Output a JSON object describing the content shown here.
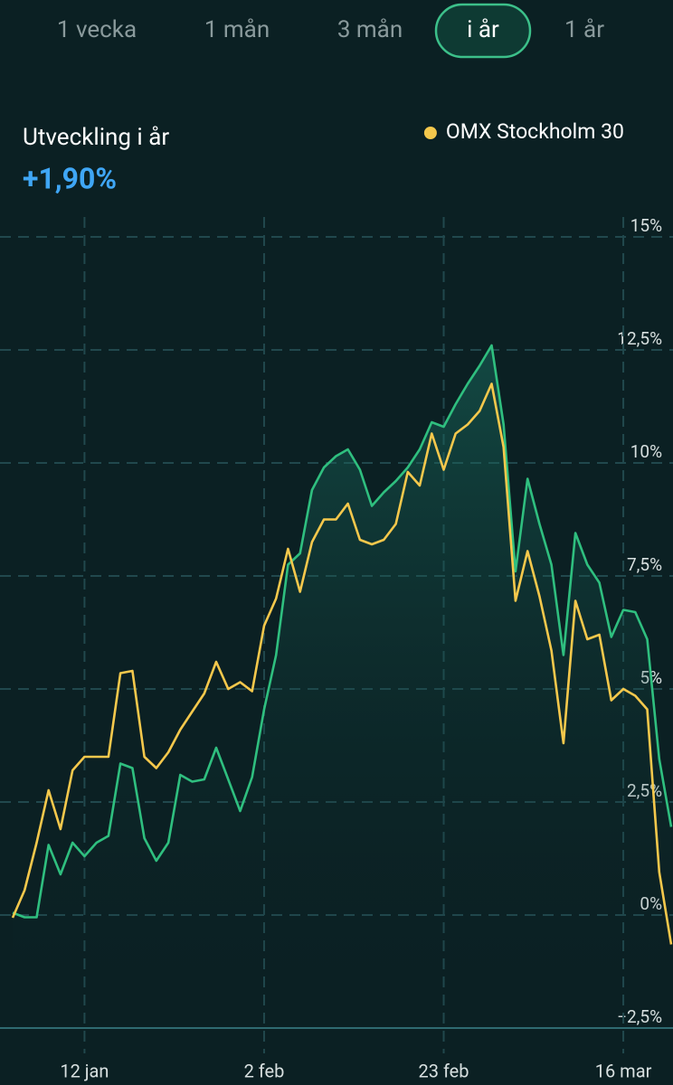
{
  "tabs": {
    "items": [
      "1 vecka",
      "1 mån",
      "3 mån",
      "i år",
      "1 år"
    ],
    "selected": 3
  },
  "header": {
    "title": "Utveckling i år",
    "change": "+1,90%"
  },
  "chart_data": {
    "type": "line",
    "categories": [
      null,
      null,
      null,
      null,
      null,
      null,
      "12 jan",
      null,
      null,
      null,
      null,
      null,
      null,
      null,
      null,
      null,
      null,
      null,
      null,
      null,
      null,
      "2 feb",
      null,
      null,
      null,
      null,
      null,
      null,
      null,
      null,
      null,
      null,
      null,
      null,
      null,
      null,
      "23 feb",
      null,
      null,
      null,
      null,
      null,
      null,
      null,
      null,
      null,
      null,
      null,
      null,
      null,
      null,
      "16 mar",
      null,
      null,
      null,
      null
    ],
    "series": [
      {
        "color": "#2fbf7f",
        "fill": true,
        "values": [
          0.05,
          -0.05,
          -0.05,
          1.55,
          0.9,
          1.6,
          1.3,
          1.6,
          1.75,
          3.35,
          3.25,
          1.7,
          1.2,
          1.6,
          3.1,
          2.95,
          3.0,
          3.7,
          3.0,
          2.3,
          3.05,
          4.55,
          5.75,
          7.75,
          8.0,
          9.4,
          9.9,
          10.15,
          10.3,
          9.85,
          9.05,
          9.35,
          9.6,
          9.9,
          10.3,
          10.9,
          10.8,
          11.3,
          11.75,
          12.15,
          12.6,
          10.85,
          7.6,
          9.65,
          8.65,
          7.75,
          5.75,
          8.45,
          7.75,
          7.35,
          6.15,
          6.75,
          6.7,
          6.1,
          3.45,
          1.95
        ]
      },
      {
        "name": "OMX Stockholm 30",
        "color": "#f5c84c",
        "fill": false,
        "values": [
          -0.06,
          0.55,
          1.6,
          2.76,
          1.9,
          3.2,
          3.5,
          3.5,
          3.5,
          5.35,
          5.4,
          3.5,
          3.25,
          3.6,
          4.1,
          4.5,
          4.9,
          5.6,
          5.0,
          5.15,
          4.95,
          6.4,
          7.0,
          8.1,
          7.15,
          8.25,
          8.75,
          8.75,
          9.1,
          8.3,
          8.2,
          8.3,
          8.65,
          9.8,
          9.5,
          10.65,
          9.85,
          10.65,
          10.85,
          11.15,
          11.75,
          10.35,
          6.95,
          8.05,
          7.05,
          5.85,
          3.8,
          6.95,
          6.1,
          6.2,
          4.75,
          5.0,
          4.85,
          4.55,
          0.95,
          -0.65
        ]
      }
    ],
    "ylim": [
      -2.5,
      15
    ],
    "yticks": [
      {
        "value": 15,
        "label": "15%"
      },
      {
        "value": 12.5,
        "label": "12,5%"
      },
      {
        "value": 10,
        "label": "10%"
      },
      {
        "value": 7.5,
        "label": "7,5%"
      },
      {
        "value": 5,
        "label": "5%"
      },
      {
        "value": 2.5,
        "label": "2,5%"
      },
      {
        "value": 0,
        "label": "0%"
      },
      {
        "value": -2.5,
        "label": "−2,5%"
      }
    ],
    "grid": true,
    "legend": "top-right"
  }
}
